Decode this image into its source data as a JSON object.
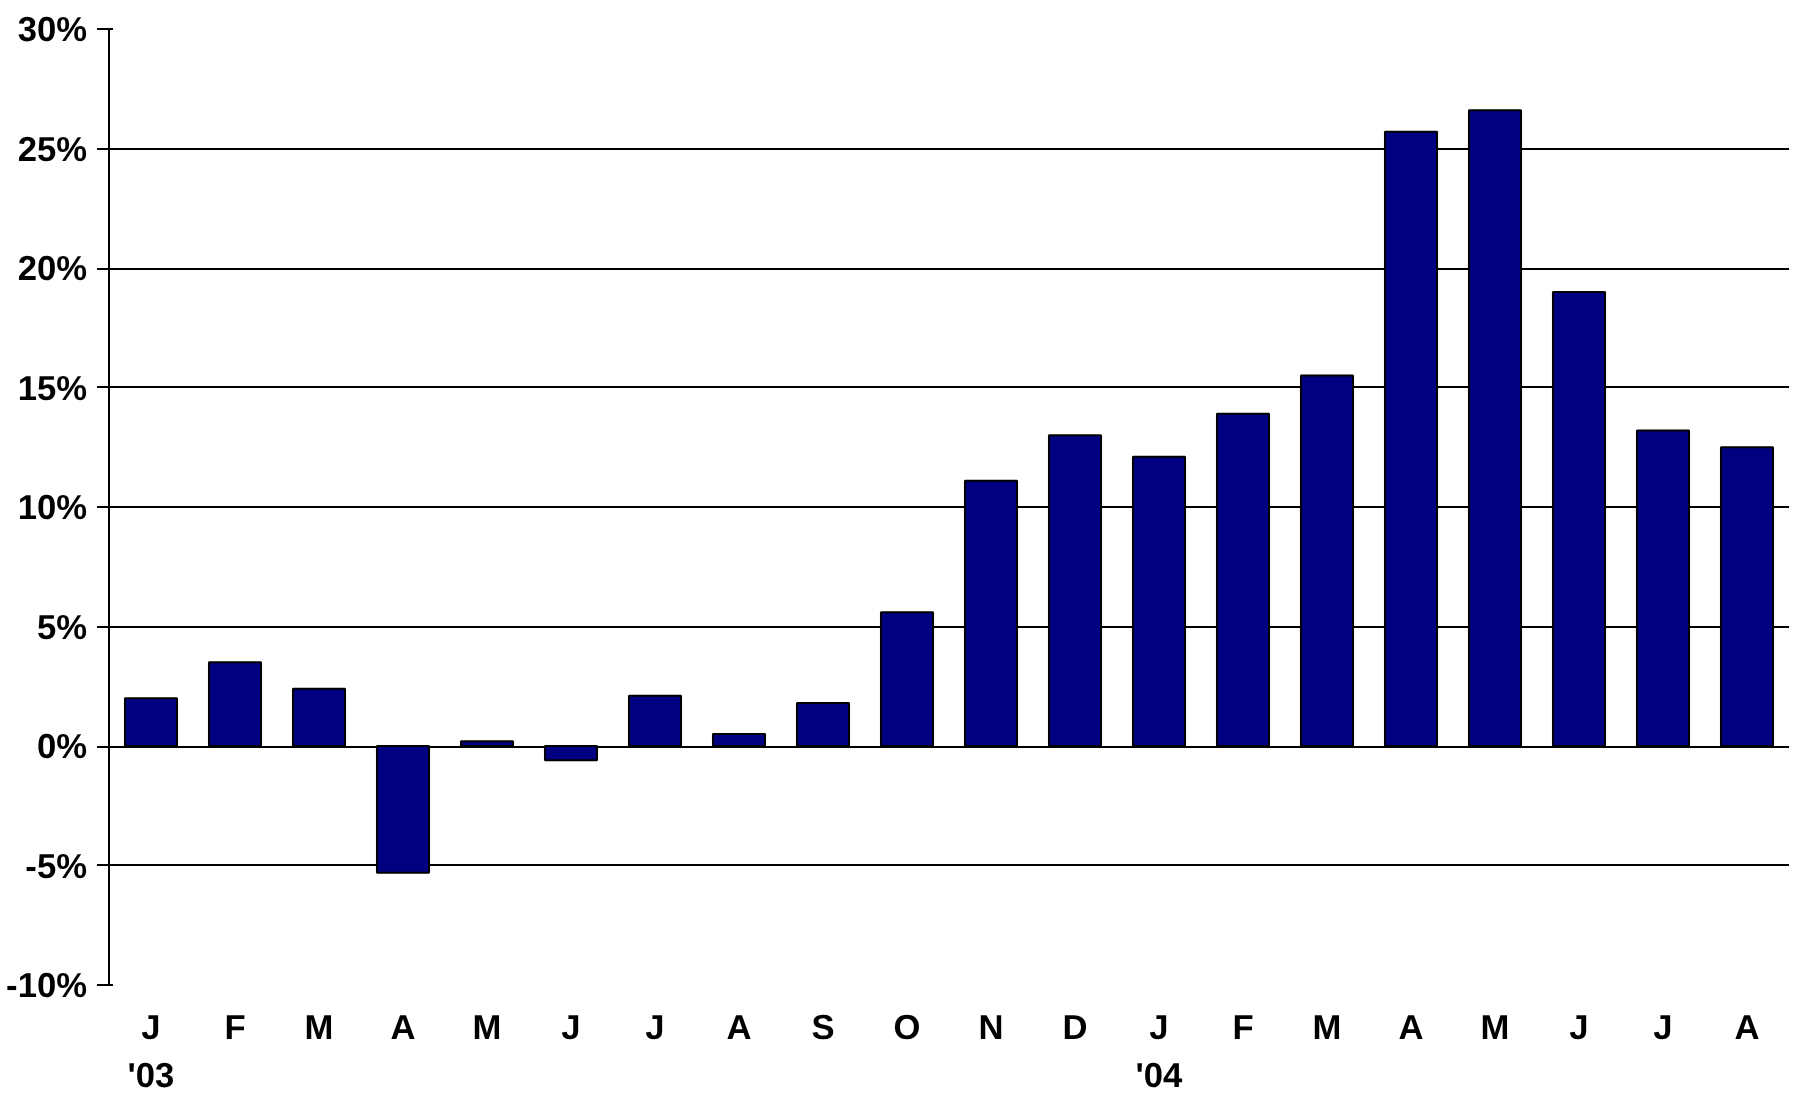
{
  "chart_data": {
    "type": "bar",
    "categories": [
      "J\n'03",
      "F",
      "M",
      "A",
      "M",
      "J",
      "J",
      "A",
      "S",
      "O",
      "N",
      "D",
      "J\n'04",
      "F",
      "M",
      "A",
      "M",
      "J",
      "J",
      "A"
    ],
    "values": [
      2.0,
      3.5,
      2.4,
      -5.3,
      0.2,
      -0.6,
      2.1,
      0.5,
      1.8,
      5.6,
      11.1,
      13.0,
      12.1,
      13.9,
      15.5,
      25.7,
      26.6,
      19.0,
      13.2,
      12.5
    ],
    "color": "#000080",
    "ylim": [
      -10,
      30
    ],
    "yticks": [
      {
        "value": -10,
        "label": "-10%"
      },
      {
        "value": -5,
        "label": "-5%"
      },
      {
        "value": 0,
        "label": "0%"
      },
      {
        "value": 5,
        "label": "5%"
      },
      {
        "value": 10,
        "label": "10%"
      },
      {
        "value": 15,
        "label": "15%"
      },
      {
        "value": 20,
        "label": "20%"
      },
      {
        "value": 25,
        "label": "25%"
      },
      {
        "value": 30,
        "label": "30%"
      }
    ],
    "grid": "y"
  }
}
